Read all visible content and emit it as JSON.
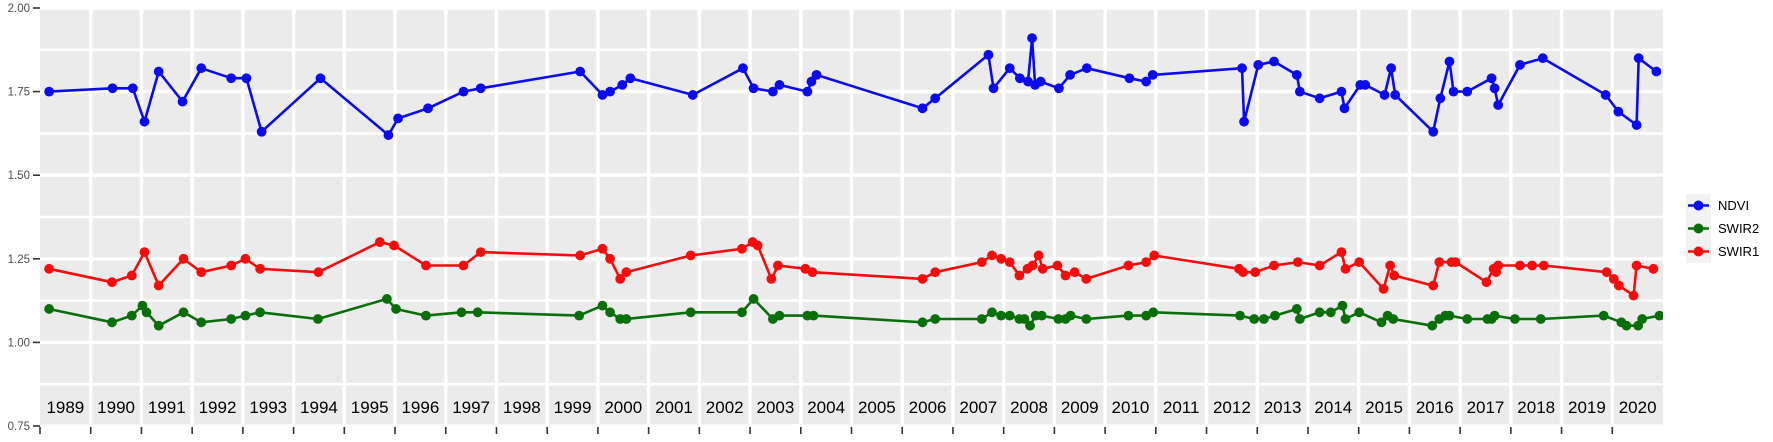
{
  "chart_data": {
    "type": "line",
    "title": "",
    "xlabel": "",
    "ylabel": "",
    "x_domain": [
      1989,
      2021
    ],
    "ylim": [
      0.75,
      2.0
    ],
    "y_ticks": [
      0.75,
      1.0,
      1.25,
      1.5,
      1.75,
      2.0
    ],
    "y_tick_labels": [
      "0.75",
      "1.00",
      "1.25",
      "1.50",
      "1.75",
      "2.00"
    ],
    "y_minor_ticks": [
      0.875,
      1.125,
      1.375,
      1.625,
      1.875
    ],
    "x_labels": [
      "1989",
      "1990",
      "1991",
      "1992",
      "1993",
      "1994",
      "1995",
      "1996",
      "1997",
      "1998",
      "1999",
      "2000",
      "2001",
      "2002",
      "2003",
      "2004",
      "2005",
      "2006",
      "2007",
      "2008",
      "2009",
      "2010",
      "2011",
      "2012",
      "2013",
      "2014",
      "2015",
      "2016",
      "2017",
      "2018",
      "2019",
      "2020"
    ],
    "grid": {
      "horizontal": "major and minor white lines",
      "vertical": "white line at each year boundary"
    },
    "legend_position": "right-center",
    "colors": {
      "panel_background": "#ebebeb",
      "gridline": "#ffffff",
      "axis_tick": "#333333",
      "y_axis_text": "#4d4d4d",
      "year_label_text": "#000000",
      "legend_key_background": "#f2f2f2"
    },
    "series": [
      {
        "name": "NDVI",
        "color": "#0b0bee",
        "points": [
          [
            1989.18,
            1.75
          ],
          [
            1990.43,
            1.76
          ],
          [
            1990.83,
            1.76
          ],
          [
            1991.06,
            1.66
          ],
          [
            1991.34,
            1.81
          ],
          [
            1991.81,
            1.72
          ],
          [
            1992.18,
            1.82
          ],
          [
            1992.77,
            1.79
          ],
          [
            1993.07,
            1.79
          ],
          [
            1993.37,
            1.63
          ],
          [
            1994.53,
            1.79
          ],
          [
            1995.87,
            1.62
          ],
          [
            1996.06,
            1.67
          ],
          [
            1996.65,
            1.7
          ],
          [
            1997.35,
            1.75
          ],
          [
            1997.69,
            1.76
          ],
          [
            1999.65,
            1.81
          ],
          [
            2000.09,
            1.74
          ],
          [
            2000.24,
            1.75
          ],
          [
            2000.48,
            1.77
          ],
          [
            2000.64,
            1.79
          ],
          [
            2001.87,
            1.74
          ],
          [
            2002.86,
            1.82
          ],
          [
            2003.07,
            1.76
          ],
          [
            2003.45,
            1.75
          ],
          [
            2003.58,
            1.77
          ],
          [
            2004.13,
            1.75
          ],
          [
            2004.21,
            1.78
          ],
          [
            2004.31,
            1.8
          ],
          [
            2006.4,
            1.7
          ],
          [
            2006.65,
            1.73
          ],
          [
            2007.7,
            1.86
          ],
          [
            2007.8,
            1.76
          ],
          [
            2008.12,
            1.82
          ],
          [
            2008.32,
            1.79
          ],
          [
            2008.48,
            1.78
          ],
          [
            2008.56,
            1.91
          ],
          [
            2008.62,
            1.77
          ],
          [
            2008.73,
            1.78
          ],
          [
            2009.09,
            1.76
          ],
          [
            2009.31,
            1.8
          ],
          [
            2009.64,
            1.82
          ],
          [
            2010.48,
            1.79
          ],
          [
            2010.81,
            1.78
          ],
          [
            2010.94,
            1.8
          ],
          [
            2012.7,
            1.82
          ],
          [
            2012.74,
            1.66
          ],
          [
            2013.02,
            1.83
          ],
          [
            2013.33,
            1.84
          ],
          [
            2013.78,
            1.8
          ],
          [
            2013.84,
            1.75
          ],
          [
            2014.23,
            1.73
          ],
          [
            2014.66,
            1.75
          ],
          [
            2014.72,
            1.7
          ],
          [
            2015.03,
            1.77
          ],
          [
            2015.13,
            1.77
          ],
          [
            2015.51,
            1.74
          ],
          [
            2015.64,
            1.82
          ],
          [
            2015.72,
            1.74
          ],
          [
            2016.47,
            1.63
          ],
          [
            2016.61,
            1.73
          ],
          [
            2016.79,
            1.84
          ],
          [
            2016.87,
            1.75
          ],
          [
            2017.14,
            1.75
          ],
          [
            2017.62,
            1.79
          ],
          [
            2017.68,
            1.76
          ],
          [
            2017.75,
            1.71
          ],
          [
            2018.18,
            1.83
          ],
          [
            2018.63,
            1.85
          ],
          [
            2019.87,
            1.74
          ],
          [
            2020.12,
            1.69
          ],
          [
            2020.48,
            1.65
          ],
          [
            2020.52,
            1.85
          ],
          [
            2020.87,
            1.81
          ]
        ]
      },
      {
        "name": "SWIR2",
        "color": "#0a6e0a",
        "points": [
          [
            1989.18,
            1.1
          ],
          [
            1990.42,
            1.06
          ],
          [
            1990.81,
            1.08
          ],
          [
            1991.02,
            1.11
          ],
          [
            1991.1,
            1.09
          ],
          [
            1991.34,
            1.05
          ],
          [
            1991.83,
            1.09
          ],
          [
            1992.18,
            1.06
          ],
          [
            1992.77,
            1.07
          ],
          [
            1993.05,
            1.08
          ],
          [
            1993.34,
            1.09
          ],
          [
            1994.48,
            1.07
          ],
          [
            1995.84,
            1.13
          ],
          [
            1996.02,
            1.1
          ],
          [
            1996.61,
            1.08
          ],
          [
            1997.31,
            1.09
          ],
          [
            1997.63,
            1.09
          ],
          [
            1999.63,
            1.08
          ],
          [
            2000.09,
            1.11
          ],
          [
            2000.24,
            1.09
          ],
          [
            2000.44,
            1.07
          ],
          [
            2000.56,
            1.07
          ],
          [
            2001.83,
            1.09
          ],
          [
            2002.84,
            1.09
          ],
          [
            2003.07,
            1.13
          ],
          [
            2003.45,
            1.07
          ],
          [
            2003.58,
            1.08
          ],
          [
            2004.13,
            1.08
          ],
          [
            2004.25,
            1.08
          ],
          [
            2006.4,
            1.06
          ],
          [
            2006.65,
            1.07
          ],
          [
            2007.57,
            1.07
          ],
          [
            2007.77,
            1.09
          ],
          [
            2007.95,
            1.08
          ],
          [
            2008.12,
            1.08
          ],
          [
            2008.31,
            1.07
          ],
          [
            2008.41,
            1.07
          ],
          [
            2008.52,
            1.05
          ],
          [
            2008.63,
            1.08
          ],
          [
            2008.75,
            1.08
          ],
          [
            2009.08,
            1.07
          ],
          [
            2009.22,
            1.07
          ],
          [
            2009.32,
            1.08
          ],
          [
            2009.63,
            1.07
          ],
          [
            2010.46,
            1.08
          ],
          [
            2010.81,
            1.08
          ],
          [
            2010.95,
            1.09
          ],
          [
            2012.66,
            1.08
          ],
          [
            2012.94,
            1.07
          ],
          [
            2013.13,
            1.07
          ],
          [
            2013.35,
            1.08
          ],
          [
            2013.78,
            1.1
          ],
          [
            2013.84,
            1.07
          ],
          [
            2014.23,
            1.09
          ],
          [
            2014.45,
            1.09
          ],
          [
            2014.68,
            1.11
          ],
          [
            2014.74,
            1.07
          ],
          [
            2015.01,
            1.09
          ],
          [
            2015.45,
            1.06
          ],
          [
            2015.57,
            1.08
          ],
          [
            2015.68,
            1.07
          ],
          [
            2016.45,
            1.05
          ],
          [
            2016.59,
            1.07
          ],
          [
            2016.71,
            1.08
          ],
          [
            2016.79,
            1.08
          ],
          [
            2017.14,
            1.07
          ],
          [
            2017.54,
            1.07
          ],
          [
            2017.62,
            1.07
          ],
          [
            2017.68,
            1.08
          ],
          [
            2018.08,
            1.07
          ],
          [
            2018.59,
            1.07
          ],
          [
            2019.83,
            1.08
          ],
          [
            2020.18,
            1.06
          ],
          [
            2020.28,
            1.05
          ],
          [
            2020.51,
            1.05
          ],
          [
            2020.59,
            1.07
          ],
          [
            2020.93,
            1.08
          ]
        ]
      },
      {
        "name": "SWIR1",
        "color": "#f50d0d",
        "points": [
          [
            1989.18,
            1.22
          ],
          [
            1990.42,
            1.18
          ],
          [
            1990.81,
            1.2
          ],
          [
            1991.06,
            1.27
          ],
          [
            1991.34,
            1.17
          ],
          [
            1991.83,
            1.25
          ],
          [
            1992.18,
            1.21
          ],
          [
            1992.77,
            1.23
          ],
          [
            1993.05,
            1.25
          ],
          [
            1993.34,
            1.22
          ],
          [
            1994.49,
            1.21
          ],
          [
            1995.7,
            1.3
          ],
          [
            1995.98,
            1.29
          ],
          [
            1996.61,
            1.23
          ],
          [
            1997.35,
            1.23
          ],
          [
            1997.69,
            1.27
          ],
          [
            1999.65,
            1.26
          ],
          [
            2000.09,
            1.28
          ],
          [
            2000.24,
            1.25
          ],
          [
            2000.44,
            1.19
          ],
          [
            2000.56,
            1.21
          ],
          [
            2001.83,
            1.26
          ],
          [
            2002.84,
            1.28
          ],
          [
            2003.05,
            1.3
          ],
          [
            2003.15,
            1.29
          ],
          [
            2003.42,
            1.19
          ],
          [
            2003.55,
            1.23
          ],
          [
            2004.09,
            1.22
          ],
          [
            2004.23,
            1.21
          ],
          [
            2006.4,
            1.19
          ],
          [
            2006.65,
            1.21
          ],
          [
            2007.57,
            1.24
          ],
          [
            2007.77,
            1.26
          ],
          [
            2007.95,
            1.25
          ],
          [
            2008.12,
            1.24
          ],
          [
            2008.31,
            1.2
          ],
          [
            2008.47,
            1.22
          ],
          [
            2008.57,
            1.23
          ],
          [
            2008.69,
            1.26
          ],
          [
            2008.77,
            1.22
          ],
          [
            2009.06,
            1.23
          ],
          [
            2009.22,
            1.2
          ],
          [
            2009.4,
            1.21
          ],
          [
            2009.63,
            1.19
          ],
          [
            2010.46,
            1.23
          ],
          [
            2010.81,
            1.24
          ],
          [
            2010.97,
            1.26
          ],
          [
            2012.64,
            1.22
          ],
          [
            2012.72,
            1.21
          ],
          [
            2012.96,
            1.21
          ],
          [
            2013.33,
            1.23
          ],
          [
            2013.8,
            1.24
          ],
          [
            2014.23,
            1.23
          ],
          [
            2014.66,
            1.27
          ],
          [
            2014.74,
            1.22
          ],
          [
            2015.01,
            1.24
          ],
          [
            2015.49,
            1.16
          ],
          [
            2015.62,
            1.23
          ],
          [
            2015.7,
            1.2
          ],
          [
            2016.47,
            1.17
          ],
          [
            2016.59,
            1.24
          ],
          [
            2016.83,
            1.24
          ],
          [
            2016.91,
            1.24
          ],
          [
            2017.52,
            1.18
          ],
          [
            2017.66,
            1.22
          ],
          [
            2017.71,
            1.21
          ],
          [
            2017.75,
            1.23
          ],
          [
            2018.18,
            1.23
          ],
          [
            2018.42,
            1.23
          ],
          [
            2018.65,
            1.23
          ],
          [
            2019.89,
            1.21
          ],
          [
            2020.03,
            1.19
          ],
          [
            2020.13,
            1.17
          ],
          [
            2020.42,
            1.14
          ],
          [
            2020.48,
            1.23
          ],
          [
            2020.81,
            1.22
          ]
        ]
      }
    ]
  }
}
